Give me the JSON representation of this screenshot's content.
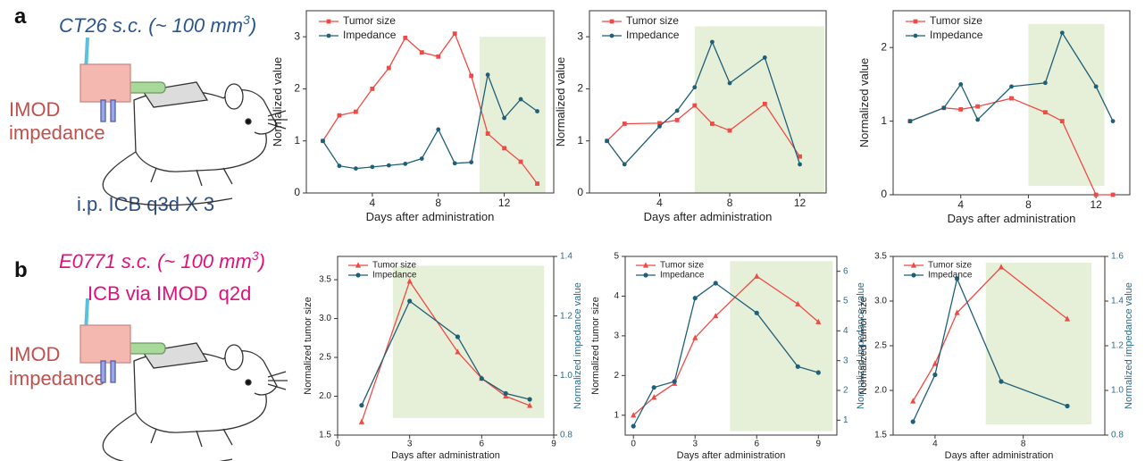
{
  "panels": [
    {
      "label": "a",
      "model": [
        "CT26 s.c. (~ 100 mm",
        "3",
        ")"
      ],
      "device": [
        "IMOD",
        "impedance"
      ],
      "treatment": "i.p. ICB q3d X 3"
    },
    {
      "label": "b",
      "model": [
        "E0771 s.c. (~ 100 mm",
        "3",
        ")"
      ],
      "device": [
        "IMOD",
        "impedance"
      ],
      "treatment": "ICB via IMOD  q2d"
    }
  ],
  "chart_data": [
    {
      "type": "line",
      "x_label": "Days after administration",
      "y_label": "Normalized value",
      "xlim": [
        0,
        15
      ],
      "xticks": [
        4,
        8,
        12
      ],
      "ylim": [
        0,
        3.5
      ],
      "yticks": [
        0,
        1,
        2,
        3
      ],
      "legend": "upper left",
      "highlight": {
        "x": [
          10.5,
          14.5
        ],
        "y": [
          0,
          3
        ],
        "color": "#e6efd8"
      },
      "series": [
        {
          "name": "Tumor size",
          "color": "#ef4a45",
          "marker": "square",
          "x": [
            1,
            2,
            3,
            4,
            5,
            6,
            7,
            8,
            9,
            10,
            11,
            12,
            13,
            14
          ],
          "values": [
            1.0,
            1.49,
            1.56,
            2.0,
            2.4,
            2.98,
            2.7,
            2.62,
            3.06,
            2.25,
            1.14,
            0.86,
            0.6,
            0.18
          ]
        },
        {
          "name": "Impedance",
          "color": "#1f5f78",
          "marker": "circle",
          "x": [
            1,
            2,
            3,
            4,
            5,
            6,
            7,
            8,
            9,
            10,
            11,
            12,
            13,
            14
          ],
          "values": [
            1.0,
            0.52,
            0.47,
            0.5,
            0.53,
            0.56,
            0.66,
            1.22,
            0.57,
            0.59,
            2.27,
            1.44,
            1.8,
            1.57
          ]
        }
      ]
    },
    {
      "type": "line",
      "x_label": "Days after administration",
      "y_label": "Normalized value",
      "xlim": [
        0,
        13.5
      ],
      "xticks": [
        4,
        8,
        12
      ],
      "ylim": [
        0,
        3.5
      ],
      "yticks": [
        0,
        1,
        2,
        3
      ],
      "legend": "upper left",
      "highlight": {
        "x": [
          6,
          13.4
        ],
        "y": [
          0,
          3.2
        ],
        "color": "#e6efd8"
      },
      "series": [
        {
          "name": "Tumor size",
          "color": "#ef4a45",
          "marker": "square",
          "x": [
            1,
            2,
            4,
            5,
            6,
            7,
            8,
            10,
            12
          ],
          "values": [
            1.0,
            1.33,
            1.34,
            1.4,
            1.68,
            1.33,
            1.2,
            1.71,
            0.7
          ]
        },
        {
          "name": "Impedance",
          "color": "#1f5f78",
          "marker": "circle",
          "x": [
            1,
            2,
            4,
            5,
            6,
            7,
            8,
            10,
            12
          ],
          "values": [
            1.0,
            0.55,
            1.28,
            1.58,
            2.03,
            2.9,
            2.11,
            2.6,
            0.55
          ]
        }
      ]
    },
    {
      "type": "line",
      "x_label": "Days after administration",
      "y_label": "Normalized value",
      "xlim": [
        0,
        14
      ],
      "xticks": [
        4,
        8,
        12
      ],
      "ylim": [
        0,
        2.5
      ],
      "yticks": [
        0,
        1,
        2
      ],
      "legend": "upper left",
      "highlight": {
        "x": [
          8,
          12.5
        ],
        "y": [
          0.12,
          2.32
        ],
        "color": "#e6efd8"
      },
      "series": [
        {
          "name": "Tumor size",
          "color": "#ef4a45",
          "marker": "square",
          "x": [
            1,
            3,
            4,
            5,
            7,
            9,
            10,
            12,
            13
          ],
          "values": [
            1.0,
            1.18,
            1.16,
            1.2,
            1.31,
            1.12,
            1.0,
            0,
            0
          ]
        },
        {
          "name": "Impedance",
          "color": "#1f5f78",
          "marker": "circle",
          "x": [
            1,
            3,
            4,
            5,
            7,
            9,
            10,
            12,
            13
          ],
          "values": [
            1.0,
            1.18,
            1.5,
            1.02,
            1.47,
            1.52,
            2.2,
            1.47,
            1.0
          ]
        }
      ]
    },
    {
      "type": "line",
      "x_label": "Days after administration",
      "y_label": "Normalized tumor size",
      "y2_label": "Normalized impedance value",
      "xlim": [
        0,
        9
      ],
      "xticks": [
        0,
        3,
        6,
        9
      ],
      "ylim": [
        1.5,
        3.8
      ],
      "yticks": [
        1.5,
        {
          "value": 2,
          "label": "2.0"
        },
        2.5,
        {
          "value": 3,
          "label": "3.0"
        },
        3.5
      ],
      "y2lim": [
        0.8,
        1.4
      ],
      "y2ticks": [
        0.8,
        {
          "value": 1,
          "label": "1.0"
        },
        1.2,
        1.4
      ],
      "legend": "upper left",
      "highlight": {
        "x": [
          2.3,
          8.6
        ],
        "y": [
          1.72,
          3.68
        ],
        "color": "#e6efd8"
      },
      "series": [
        {
          "name": "Tumor size",
          "color": "#ef4a45",
          "marker": "triangle",
          "x": [
            1,
            3,
            5,
            6,
            7,
            8
          ],
          "values": [
            1.67,
            3.48,
            2.57,
            2.23,
            2.0,
            1.88
          ]
        },
        {
          "name": "Impedance",
          "color": "#1f5f78",
          "marker": "circle",
          "axis": "y2",
          "x": [
            1,
            3,
            5,
            6,
            7,
            8
          ],
          "values": [
            0.9,
            1.25,
            1.13,
            0.99,
            0.94,
            0.92
          ]
        }
      ]
    },
    {
      "type": "line",
      "x_label": "Days after administration",
      "y_label": "Normalized tumor size",
      "y2_label": "Normalized impedance value",
      "xlim": [
        -0.4,
        9.9
      ],
      "xticks": [
        0,
        3,
        6,
        9
      ],
      "ylim": [
        0.5,
        5
      ],
      "yticks": [
        1,
        2,
        3,
        4,
        5
      ],
      "y2lim": [
        0.5,
        6.5
      ],
      "y2ticks": [
        1,
        2,
        3,
        4,
        5,
        6
      ],
      "legend": "upper left",
      "highlight": {
        "x": [
          4.7,
          9.7
        ],
        "y": [
          0.6,
          4.88
        ],
        "color": "#e6efd8"
      },
      "series": [
        {
          "name": "Tumor size",
          "color": "#ef4a45",
          "marker": "triangle",
          "x": [
            0,
            1,
            2,
            3,
            4,
            6,
            8,
            9
          ],
          "values": [
            1.0,
            1.45,
            1.8,
            2.95,
            3.5,
            4.5,
            3.8,
            3.35
          ]
        },
        {
          "name": "Impedance",
          "color": "#1f5f78",
          "marker": "circle",
          "axis": "y2",
          "x": [
            0,
            1,
            2,
            3,
            4,
            6,
            8,
            9
          ],
          "values": [
            0.8,
            2.1,
            2.3,
            5.1,
            5.6,
            4.6,
            2.8,
            2.6
          ]
        }
      ]
    },
    {
      "type": "line",
      "x_label": "Days after administration",
      "y_label": "Normalized tumor size",
      "y2_label": "Normalized impedance value",
      "xlim": [
        2.1,
        11.7
      ],
      "xticks": [
        4,
        8
      ],
      "ylim": [
        1.5,
        3.5
      ],
      "yticks": [
        1.5,
        {
          "value": 2,
          "label": "2.0"
        },
        2.5,
        {
          "value": 3,
          "label": "3.0"
        },
        3.5
      ],
      "y2lim": [
        0.8,
        1.6
      ],
      "y2ticks": [
        0.8,
        {
          "value": 1,
          "label": "1.0"
        },
        1.2,
        1.4,
        1.6
      ],
      "legend": "upper left",
      "highlight": {
        "x": [
          6.3,
          11.1
        ],
        "y": [
          1.62,
          3.43
        ],
        "color": "#e6efd8"
      },
      "series": [
        {
          "name": "Tumor size",
          "color": "#ef4a45",
          "marker": "triangle",
          "x": [
            3,
            4,
            5,
            7,
            10
          ],
          "values": [
            1.88,
            2.3,
            2.87,
            3.38,
            2.8
          ]
        },
        {
          "name": "Impedance",
          "color": "#1f5f78",
          "marker": "circle",
          "axis": "y2",
          "x": [
            3,
            4,
            5,
            7,
            10
          ],
          "values": [
            0.86,
            1.07,
            1.5,
            1.04,
            0.93
          ]
        }
      ]
    }
  ]
}
